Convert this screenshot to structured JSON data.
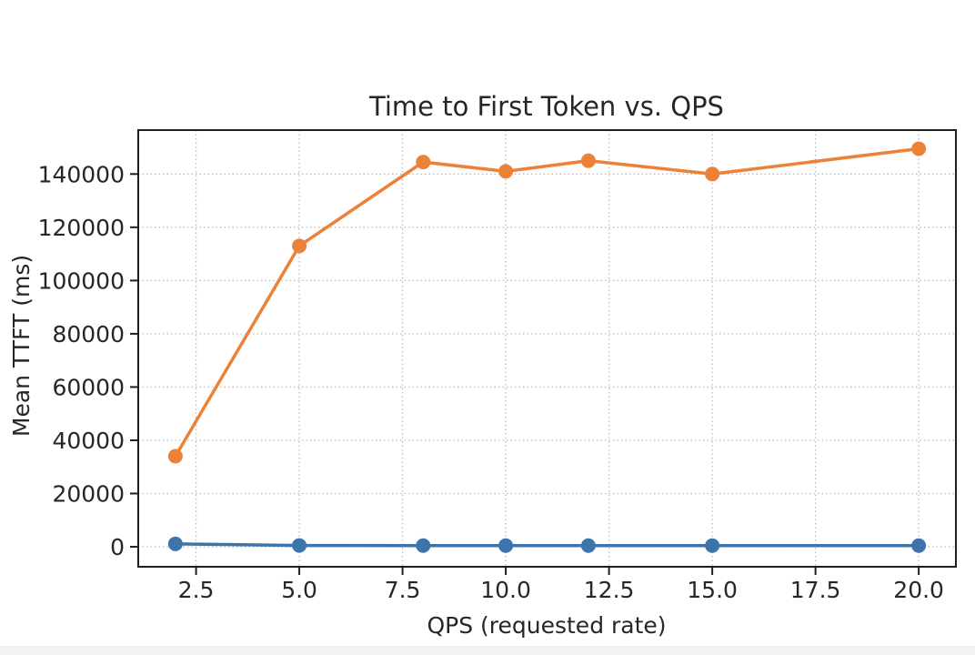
{
  "page": {
    "background": "#ffffff",
    "bottom_bar_color": "#f3f4f2"
  },
  "chart_data": {
    "type": "line",
    "title": "Time to First Token vs. QPS",
    "xlabel": "QPS (requested rate)",
    "ylabel": "Mean TTFT (ms)",
    "x": [
      2,
      5,
      8,
      10,
      12,
      15,
      20
    ],
    "series": [
      {
        "id": "blue",
        "color": "#3d74ac",
        "values": [
          1100,
          500,
          450,
          450,
          450,
          450,
          450
        ]
      },
      {
        "id": "orange",
        "color": "#ec8138",
        "values": [
          34000,
          113000,
          144500,
          141000,
          145000,
          140000,
          149500
        ]
      }
    ],
    "xlim": [
      1.1,
      20.9
    ],
    "ylim": [
      -7500,
      156500
    ],
    "x_ticks": {
      "values": [
        2.5,
        5,
        7.5,
        10,
        12.5,
        15,
        17.5,
        20
      ],
      "labels": [
        "2.5",
        "5.0",
        "7.5",
        "10.0",
        "12.5",
        "15.0",
        "17.5",
        "20.0"
      ]
    },
    "y_ticks": {
      "values": [
        0,
        20000,
        40000,
        60000,
        80000,
        100000,
        120000,
        140000
      ],
      "labels": [
        "0",
        "20000",
        "40000",
        "60000",
        "80000",
        "100000",
        "120000",
        "140000"
      ]
    },
    "grid": "dotted",
    "legend": "none",
    "marker": "circle",
    "axis_color": "#1f1f1f",
    "grid_color": "#bdbdbd",
    "text_color": "#262626"
  }
}
